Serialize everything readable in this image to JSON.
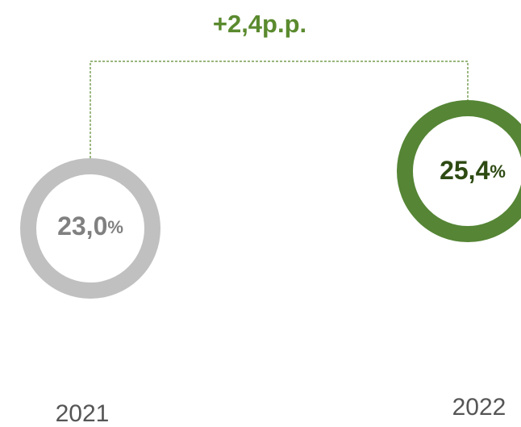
{
  "delta": "+2,4p.p.",
  "items": [
    {
      "year": "2021",
      "value": "23,0",
      "unit": "%"
    },
    {
      "year": "2022",
      "value": "25,4",
      "unit": "%"
    }
  ]
}
